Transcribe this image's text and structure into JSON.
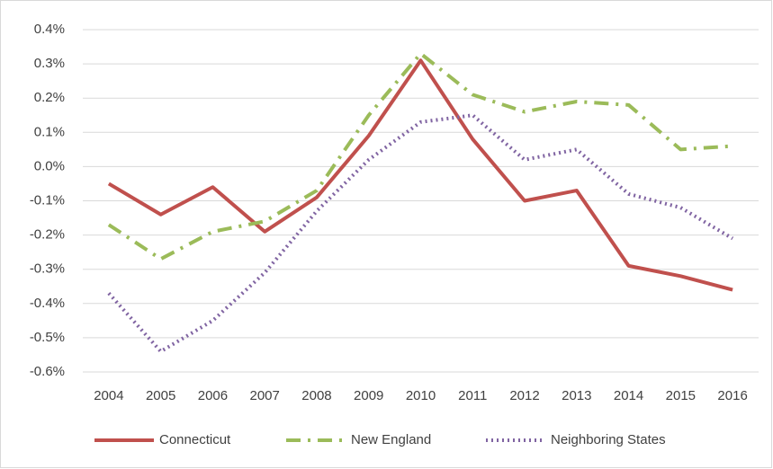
{
  "chart_data": {
    "type": "line",
    "categories": [
      "2004",
      "2005",
      "2006",
      "2007",
      "2008",
      "2009",
      "2010",
      "2011",
      "2012",
      "2013",
      "2014",
      "2015",
      "2016"
    ],
    "series": [
      {
        "name": "Connecticut",
        "color": "#c0504d",
        "style": "solid",
        "values": [
          -0.05,
          -0.14,
          -0.06,
          -0.19,
          -0.09,
          0.09,
          0.31,
          0.08,
          -0.1,
          -0.07,
          -0.29,
          -0.32,
          -0.36
        ]
      },
      {
        "name": "New England",
        "color": "#9bbb59",
        "style": "dashdot",
        "values": [
          -0.17,
          -0.27,
          -0.19,
          -0.16,
          -0.07,
          0.15,
          0.33,
          0.21,
          0.16,
          0.19,
          0.18,
          0.05,
          0.06
        ]
      },
      {
        "name": "Neighboring States",
        "color": "#8064a2",
        "style": "dotted",
        "values": [
          -0.37,
          -0.54,
          -0.45,
          -0.31,
          -0.13,
          0.02,
          0.13,
          0.15,
          0.02,
          0.05,
          -0.08,
          -0.12,
          -0.21
        ]
      }
    ],
    "ylim": [
      -0.6,
      0.4
    ],
    "yticks": [
      {
        "value": -0.6,
        "label": "-0.6%"
      },
      {
        "value": -0.5,
        "label": "-0.5%"
      },
      {
        "value": -0.4,
        "label": "-0.4%"
      },
      {
        "value": -0.3,
        "label": "-0.3%"
      },
      {
        "value": -0.2,
        "label": "-0.2%"
      },
      {
        "value": -0.1,
        "label": "-0.1%"
      },
      {
        "value": 0,
        "label": "0.0%"
      },
      {
        "value": 0.1,
        "label": "0.1%"
      },
      {
        "value": 0.2,
        "label": "0.2%"
      },
      {
        "value": 0.3,
        "label": "0.3%"
      },
      {
        "value": 0.4,
        "label": "0.4%"
      }
    ],
    "grid": true,
    "legend": "bottom"
  }
}
